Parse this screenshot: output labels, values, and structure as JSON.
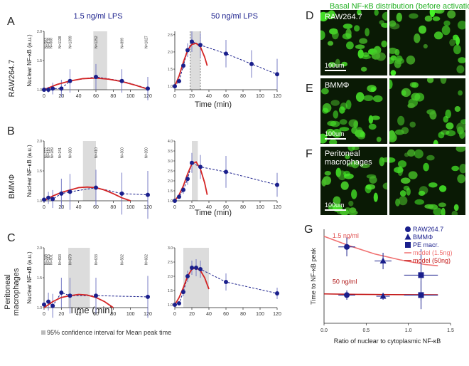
{
  "caption": "95% confidence interval for Mean peak time",
  "micro_title": "Basal NF-κB distribution (before activation)",
  "col_titles": [
    "1.5 ng/ml LPS",
    "50 ng/ml LPS"
  ],
  "row_ylabels": [
    "Nuclear NF-κB (a.u.)",
    "Nuclear NF-κB (a.u.)",
    "Nuclear NF-κB (a.u.)"
  ],
  "row_names": [
    "RAW264.7",
    "BMMΦ",
    "Peritoneal macrophages"
  ],
  "letters": [
    "A",
    "B",
    "C",
    "D",
    "E",
    "F",
    "G"
  ],
  "xlabel": "Time (min)",
  "inset_xlabel": "Time (min)",
  "colors": {
    "navy": "#1a1f8c",
    "red": "#d42424",
    "green": "#22b022",
    "band": "#dcdcdc"
  },
  "chart_data": [
    {
      "type": "line",
      "panel": "A-left",
      "title": "1.5 ng/ml LPS",
      "xlabel": "Time (min)",
      "ylabel": "Nuclear NF-κB (a.u.)",
      "xlim": [
        0,
        120
      ],
      "ylim": [
        1.0,
        2.0
      ],
      "xticks": [
        0,
        20,
        40,
        60,
        80,
        100,
        120
      ],
      "yticks": [
        1.0,
        1.5,
        2.0
      ],
      "band": [
        57,
        73
      ],
      "points": [
        [
          0,
          1.0
        ],
        [
          5,
          1.0
        ],
        [
          10,
          1.02
        ],
        [
          20,
          1.02
        ],
        [
          30,
          1.15
        ],
        [
          60,
          1.22
        ],
        [
          90,
          1.15
        ],
        [
          120,
          1.02
        ]
      ],
      "errors": [
        0.02,
        0.05,
        0.1,
        0.15,
        0.2,
        0.22,
        0.2,
        0.2
      ],
      "model": [
        [
          0,
          1.0
        ],
        [
          15,
          1.09
        ],
        [
          30,
          1.15
        ],
        [
          45,
          1.19
        ],
        [
          60,
          1.2
        ],
        [
          75,
          1.18
        ],
        [
          90,
          1.14
        ],
        [
          105,
          1.08
        ],
        [
          120,
          1.01
        ]
      ],
      "n_labels": [
        [
          2,
          "N=583"
        ],
        [
          5,
          "N=878"
        ],
        [
          8,
          "N=668"
        ],
        [
          18,
          "N=1138"
        ],
        [
          30,
          "N=1399"
        ],
        [
          60,
          "N=1252"
        ],
        [
          90,
          "N=899"
        ],
        [
          118,
          "N=1027"
        ]
      ]
    },
    {
      "type": "line",
      "panel": "A-right",
      "title": "50 ng/ml LPS",
      "xlim": [
        0,
        120
      ],
      "ylim": [
        0.9,
        2.6
      ],
      "xticks": [
        0,
        20,
        40,
        60,
        80,
        100,
        120
      ],
      "yticks": [
        1.0,
        1.5,
        2.0,
        2.5
      ],
      "band": [
        18,
        30
      ],
      "points": [
        [
          0,
          1.0
        ],
        [
          5,
          1.15
        ],
        [
          10,
          1.6
        ],
        [
          15,
          2.05
        ],
        [
          20,
          2.3
        ],
        [
          30,
          2.2
        ],
        [
          60,
          1.95
        ],
        [
          90,
          1.65
        ],
        [
          120,
          1.35
        ]
      ],
      "errors": [
        0.02,
        0.05,
        0.1,
        0.2,
        0.3,
        0.35,
        0.4,
        0.4,
        0.45
      ],
      "model": [
        [
          0,
          1.0
        ],
        [
          5,
          1.3
        ],
        [
          10,
          1.7
        ],
        [
          15,
          2.05
        ],
        [
          20,
          2.22
        ],
        [
          25,
          2.25
        ],
        [
          30,
          2.15
        ],
        [
          35,
          1.85
        ],
        [
          38,
          1.6
        ]
      ]
    },
    {
      "type": "line",
      "panel": "B-left",
      "xlabel": "Time (min)",
      "ylabel": "Nuclear NF-κB (a.u.)",
      "xlim": [
        0,
        120
      ],
      "ylim": [
        1.0,
        2.0
      ],
      "xticks": [
        0,
        20,
        40,
        60,
        80,
        100,
        120
      ],
      "yticks": [
        1.0,
        1.5,
        2.0
      ],
      "band": [
        45,
        60
      ],
      "points": [
        [
          0,
          1.02
        ],
        [
          5,
          1.05
        ],
        [
          10,
          1.03
        ],
        [
          20,
          1.12
        ],
        [
          30,
          1.15
        ],
        [
          60,
          1.22
        ],
        [
          90,
          1.12
        ],
        [
          120,
          1.1
        ]
      ],
      "errors": [
        0.03,
        0.1,
        0.15,
        0.25,
        0.3,
        0.3,
        0.35,
        0.4
      ],
      "model": [
        [
          0,
          1.0
        ],
        [
          10,
          1.08
        ],
        [
          20,
          1.14
        ],
        [
          30,
          1.18
        ],
        [
          40,
          1.22
        ],
        [
          50,
          1.23
        ],
        [
          60,
          1.22
        ],
        [
          70,
          1.18
        ],
        [
          80,
          1.12
        ],
        [
          90,
          1.05
        ],
        [
          100,
          0.98
        ]
      ],
      "n_labels": [
        [
          2,
          "N=372"
        ],
        [
          5,
          "N=616"
        ],
        [
          9,
          "N=289"
        ],
        [
          18,
          "N=241"
        ],
        [
          30,
          "N=380"
        ],
        [
          60,
          "N=410"
        ],
        [
          90,
          "N=300"
        ],
        [
          118,
          "N=390"
        ]
      ]
    },
    {
      "type": "line",
      "panel": "B-right",
      "xlim": [
        0,
        120
      ],
      "ylim": [
        1.0,
        4.0
      ],
      "xticks": [
        0,
        20,
        40,
        60,
        80,
        100,
        120
      ],
      "yticks": [
        1.0,
        1.5,
        2.0,
        2.5,
        3.0,
        3.5,
        4.0
      ],
      "band": [
        20,
        27
      ],
      "points": [
        [
          0,
          1.0
        ],
        [
          5,
          1.2
        ],
        [
          10,
          1.55
        ],
        [
          15,
          2.1
        ],
        [
          20,
          2.9
        ],
        [
          30,
          2.7
        ],
        [
          60,
          2.45
        ],
        [
          120,
          1.8
        ]
      ],
      "errors": [
        0.02,
        0.1,
        0.2,
        0.3,
        0.5,
        0.6,
        0.8,
        0.6
      ],
      "model": [
        [
          0,
          1.0
        ],
        [
          5,
          1.3
        ],
        [
          10,
          1.75
        ],
        [
          15,
          2.35
        ],
        [
          20,
          2.85
        ],
        [
          25,
          2.95
        ],
        [
          30,
          2.6
        ],
        [
          35,
          1.9
        ],
        [
          38,
          1.3
        ]
      ]
    },
    {
      "type": "line",
      "panel": "C-left",
      "xlabel": "Time (min)",
      "ylabel": "Nuclear NF-κB (a.u.)",
      "xlim": [
        0,
        120
      ],
      "ylim": [
        1.0,
        2.0
      ],
      "xticks": [
        0,
        20,
        40,
        60,
        80,
        100,
        120
      ],
      "yticks": [
        1.0,
        1.5,
        2.0
      ],
      "band": [
        28,
        53
      ],
      "points": [
        [
          0,
          1.05
        ],
        [
          5,
          1.1
        ],
        [
          10,
          1.03
        ],
        [
          20,
          1.25
        ],
        [
          30,
          1.2
        ],
        [
          60,
          1.2
        ],
        [
          120,
          1.18
        ]
      ],
      "errors": [
        0.05,
        0.15,
        0.2,
        0.25,
        0.3,
        0.3,
        0.35
      ],
      "model": [
        [
          0,
          1.0
        ],
        [
          10,
          1.1
        ],
        [
          20,
          1.17
        ],
        [
          30,
          1.2
        ],
        [
          40,
          1.22
        ],
        [
          50,
          1.21
        ],
        [
          60,
          1.17
        ],
        [
          70,
          1.1
        ],
        [
          80,
          1.0
        ]
      ],
      "n_labels": [
        [
          2,
          "N=348"
        ],
        [
          5,
          "N=515"
        ],
        [
          8,
          "N=601"
        ],
        [
          18,
          "N=693"
        ],
        [
          30,
          "N=679"
        ],
        [
          60,
          "N=633"
        ],
        [
          90,
          "N=562"
        ],
        [
          118,
          "N=662"
        ]
      ]
    },
    {
      "type": "line",
      "panel": "C-right",
      "xlim": [
        0,
        120
      ],
      "ylim": [
        0.9,
        3.0
      ],
      "xticks": [
        0,
        20,
        40,
        60,
        80,
        100,
        120
      ],
      "yticks": [
        1.0,
        1.5,
        2.0,
        2.5,
        3.0
      ],
      "band": [
        10,
        40
      ],
      "points": [
        [
          0,
          1.0
        ],
        [
          5,
          1.05
        ],
        [
          10,
          1.45
        ],
        [
          15,
          2.0
        ],
        [
          20,
          2.3
        ],
        [
          25,
          2.3
        ],
        [
          30,
          2.25
        ],
        [
          60,
          1.8
        ],
        [
          120,
          1.4
        ]
      ],
      "errors": [
        0.02,
        0.05,
        0.15,
        0.2,
        0.25,
        0.3,
        0.3,
        0.3,
        0.2
      ],
      "model": [
        [
          0,
          1.0
        ],
        [
          5,
          1.25
        ],
        [
          10,
          1.6
        ],
        [
          15,
          2.0
        ],
        [
          20,
          2.25
        ],
        [
          25,
          2.3
        ],
        [
          30,
          2.2
        ],
        [
          35,
          1.95
        ],
        [
          40,
          1.55
        ]
      ]
    },
    {
      "type": "scatter",
      "panel": "G",
      "xlabel": "Ratio of nuclear to cytoplasmic NF-κB",
      "ylabel": "Time to NF-κB peak",
      "xlim": [
        0,
        1.5
      ],
      "ylim": [
        0,
        80
      ],
      "xticks": [
        0.0,
        0.5,
        1.0,
        1.5
      ],
      "series": [
        {
          "name": "RAW264.7",
          "marker": "circle",
          "points": [
            [
              0.27,
              65,
              0.1,
              8
            ],
            [
              0.27,
              24,
              0.1,
              4
            ]
          ]
        },
        {
          "name": "BMMΦ",
          "marker": "triangle",
          "points": [
            [
              0.7,
              53,
              0.1,
              7
            ],
            [
              0.7,
              23,
              0.08,
              3
            ]
          ]
        },
        {
          "name": "PE macr.",
          "marker": "square",
          "points": [
            [
              1.15,
              41,
              0.2,
              22
            ],
            [
              1.15,
              24,
              0.2,
              12
            ]
          ]
        }
      ],
      "models": [
        {
          "name": "model (1.5ng)",
          "color": "#f07070",
          "points": [
            [
              0,
              74
            ],
            [
              0.3,
              66
            ],
            [
              0.6,
              59
            ],
            [
              0.9,
              54
            ],
            [
              1.2,
              50
            ],
            [
              1.35,
              49
            ]
          ]
        },
        {
          "name": "model (50ng)",
          "color": "#c41818",
          "points": [
            [
              0,
              25
            ],
            [
              0.4,
              24.6
            ],
            [
              0.8,
              24.4
            ],
            [
              1.35,
              24.2
            ]
          ]
        }
      ],
      "annotations": [
        "1.5 ng/ml",
        "50 ng/ml"
      ]
    }
  ]
}
